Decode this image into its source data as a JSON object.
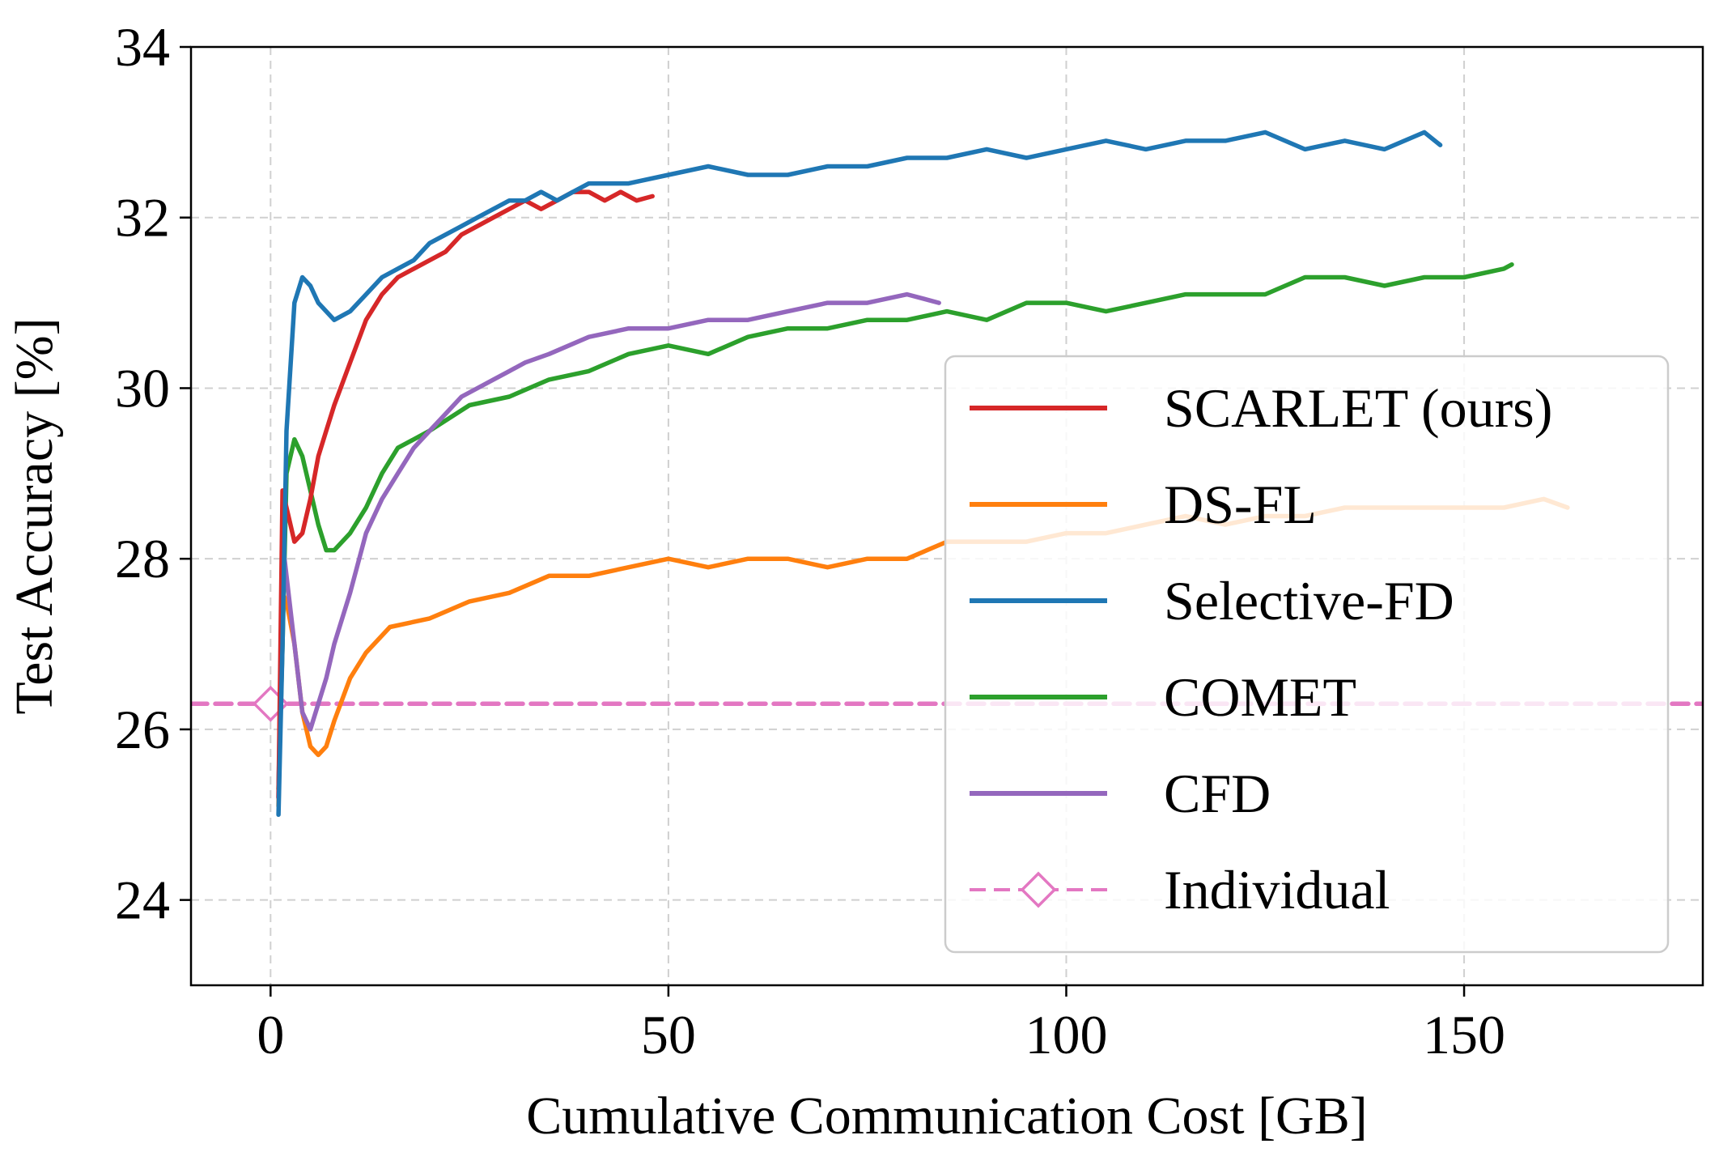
{
  "chart_data": {
    "type": "line",
    "title": "",
    "xlabel": "Cumulative Communication Cost [GB]",
    "ylabel": "Test Accuracy [%]",
    "xlim": [
      -10,
      180
    ],
    "ylim": [
      23,
      34
    ],
    "xticks": [
      0,
      50,
      100,
      150
    ],
    "yticks": [
      24,
      26,
      28,
      30,
      32,
      34
    ],
    "grid": true,
    "legend_position": "center-right",
    "series": [
      {
        "name": "SCARLET (ours)",
        "color": "#d62728",
        "style": "solid",
        "x": [
          1,
          1.5,
          2,
          3,
          4,
          5,
          6,
          7,
          8,
          10,
          12,
          14,
          16,
          18,
          20,
          22,
          24,
          26,
          28,
          30,
          32,
          34,
          36,
          38,
          40,
          42,
          44,
          46,
          48
        ],
        "y": [
          25.2,
          28.8,
          28.6,
          28.2,
          28.3,
          28.7,
          29.2,
          29.5,
          29.8,
          30.3,
          30.8,
          31.1,
          31.3,
          31.4,
          31.5,
          31.6,
          31.8,
          31.9,
          32.0,
          32.1,
          32.2,
          32.1,
          32.2,
          32.3,
          32.3,
          32.2,
          32.3,
          32.2,
          32.25
        ]
      },
      {
        "name": "DS-FL",
        "color": "#ff7f0e",
        "style": "solid",
        "x": [
          1,
          1.5,
          2,
          3,
          4,
          5,
          6,
          7,
          8,
          10,
          12,
          15,
          20,
          25,
          30,
          35,
          40,
          45,
          50,
          55,
          60,
          65,
          70,
          75,
          80,
          85,
          90,
          95,
          100,
          105,
          110,
          115,
          120,
          125,
          130,
          135,
          140,
          145,
          150,
          155,
          160,
          163
        ],
        "y": [
          25.1,
          27.6,
          27.5,
          27.0,
          26.2,
          25.8,
          25.7,
          25.8,
          26.1,
          26.6,
          26.9,
          27.2,
          27.3,
          27.5,
          27.6,
          27.8,
          27.8,
          27.9,
          28.0,
          27.9,
          28.0,
          28.0,
          27.9,
          28.0,
          28.0,
          28.2,
          28.2,
          28.2,
          28.3,
          28.3,
          28.4,
          28.5,
          28.4,
          28.5,
          28.5,
          28.6,
          28.6,
          28.6,
          28.6,
          28.6,
          28.7,
          28.6
        ]
      },
      {
        "name": "Selective-FD",
        "color": "#1f77b4",
        "style": "solid",
        "x": [
          1,
          1.5,
          2,
          3,
          4,
          5,
          6,
          7,
          8,
          10,
          12,
          14,
          16,
          18,
          20,
          22,
          24,
          26,
          28,
          30,
          32,
          34,
          36,
          38,
          40,
          45,
          50,
          55,
          60,
          65,
          70,
          75,
          80,
          85,
          90,
          95,
          100,
          105,
          110,
          115,
          120,
          125,
          130,
          135,
          140,
          145,
          147
        ],
        "y": [
          25.0,
          27.0,
          29.5,
          31.0,
          31.3,
          31.2,
          31.0,
          30.9,
          30.8,
          30.9,
          31.1,
          31.3,
          31.4,
          31.5,
          31.7,
          31.8,
          31.9,
          32.0,
          32.1,
          32.2,
          32.2,
          32.3,
          32.2,
          32.3,
          32.4,
          32.4,
          32.5,
          32.6,
          32.5,
          32.5,
          32.6,
          32.6,
          32.7,
          32.7,
          32.8,
          32.7,
          32.8,
          32.9,
          32.8,
          32.9,
          32.9,
          33.0,
          32.8,
          32.9,
          32.8,
          33.0,
          32.85
        ]
      },
      {
        "name": "COMET",
        "color": "#2ca02c",
        "style": "solid",
        "x": [
          1,
          1.5,
          2,
          3,
          4,
          5,
          6,
          7,
          8,
          10,
          12,
          14,
          16,
          18,
          20,
          25,
          30,
          35,
          40,
          45,
          50,
          55,
          60,
          65,
          70,
          75,
          80,
          85,
          90,
          95,
          100,
          105,
          110,
          115,
          120,
          125,
          130,
          135,
          140,
          145,
          150,
          155,
          156
        ],
        "y": [
          25.3,
          27.0,
          29.0,
          29.4,
          29.2,
          28.8,
          28.4,
          28.1,
          28.1,
          28.3,
          28.6,
          29.0,
          29.3,
          29.4,
          29.5,
          29.8,
          29.9,
          30.1,
          30.2,
          30.4,
          30.5,
          30.4,
          30.6,
          30.7,
          30.7,
          30.8,
          30.8,
          30.9,
          30.8,
          31.0,
          31.0,
          30.9,
          31.0,
          31.1,
          31.1,
          31.1,
          31.3,
          31.3,
          31.2,
          31.3,
          31.3,
          31.4,
          31.45
        ]
      },
      {
        "name": "CFD",
        "color": "#9467bd",
        "style": "solid",
        "x": [
          1,
          1.5,
          2,
          3,
          4,
          5,
          6,
          7,
          8,
          10,
          12,
          14,
          16,
          18,
          20,
          22,
          24,
          26,
          28,
          30,
          32,
          35,
          40,
          45,
          50,
          55,
          60,
          65,
          70,
          75,
          80,
          84
        ],
        "y": [
          25.2,
          28.2,
          27.8,
          27.0,
          26.2,
          26.0,
          26.3,
          26.6,
          27.0,
          27.6,
          28.3,
          28.7,
          29.0,
          29.3,
          29.5,
          29.7,
          29.9,
          30.0,
          30.1,
          30.2,
          30.3,
          30.4,
          30.6,
          30.7,
          30.7,
          30.8,
          30.8,
          30.9,
          31.0,
          31.0,
          31.1,
          31.0
        ]
      },
      {
        "name": "Individual",
        "color": "#e377c2",
        "style": "dashed",
        "marker": "diamond",
        "x": [
          -10,
          0,
          180
        ],
        "y": [
          26.3,
          26.3,
          26.3
        ]
      }
    ]
  }
}
